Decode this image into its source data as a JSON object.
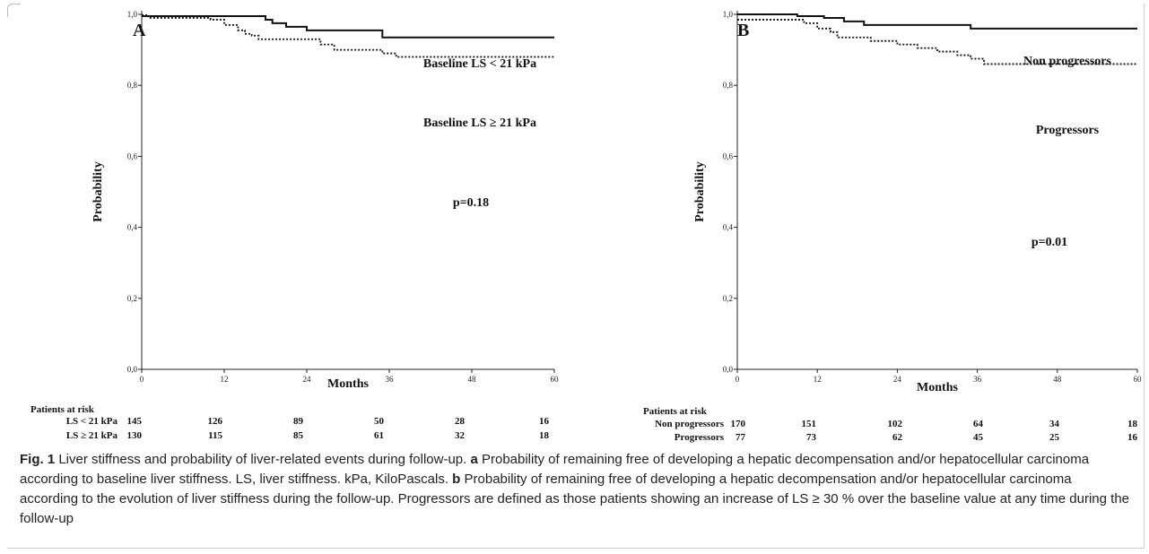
{
  "chart_data": [
    {
      "type": "line",
      "panel_label": "A",
      "ylabel": "Probability",
      "xlabel": "Months",
      "xlim": [
        0,
        60
      ],
      "ylim": [
        0,
        1
      ],
      "x_ticks": [
        0,
        12,
        24,
        36,
        48,
        60
      ],
      "x_tick_labels": [
        "0",
        "12",
        "24",
        "36",
        "48",
        "60"
      ],
      "y_ticks": [
        0,
        0.2,
        0.4,
        0.6,
        0.8,
        1.0
      ],
      "y_tick_labels": [
        "0,0",
        "0,2",
        "0,4",
        "0,6",
        "0,8",
        "1,0"
      ],
      "annotation": "p=0.18",
      "series": [
        {
          "name": "Baseline LS < 21 kPa",
          "style": "solid",
          "step_x": [
            0,
            17,
            18,
            19,
            21,
            22,
            24,
            27,
            35,
            60
          ],
          "step_y": [
            0.995,
            0.995,
            0.985,
            0.975,
            0.965,
            0.965,
            0.955,
            0.955,
            0.935,
            0.935
          ]
        },
        {
          "name": "Baseline LS ≥ 21 kPa",
          "style": "dotted",
          "step_x": [
            0,
            1,
            10,
            12,
            14,
            15,
            16,
            17,
            26,
            28,
            35,
            37,
            60
          ],
          "step_y": [
            0.998,
            0.99,
            0.985,
            0.97,
            0.955,
            0.945,
            0.94,
            0.93,
            0.915,
            0.9,
            0.89,
            0.88,
            0.88
          ]
        }
      ],
      "risk_table": {
        "header": "Patients at risk",
        "rows": [
          {
            "label": "LS < 21 kPa",
            "values": [
              "145",
              "126",
              "89",
              "50",
              "28",
              "16"
            ]
          },
          {
            "label": "LS ≥ 21 kPa",
            "values": [
              "130",
              "115",
              "85",
              "61",
              "32",
              "18"
            ]
          }
        ]
      }
    },
    {
      "type": "line",
      "panel_label": "B",
      "ylabel": "Probability",
      "xlabel": "Months",
      "xlim": [
        0,
        60
      ],
      "ylim": [
        0,
        1
      ],
      "x_ticks": [
        0,
        12,
        24,
        36,
        48,
        60
      ],
      "x_tick_labels": [
        "0",
        "12",
        "24",
        "36",
        "48",
        "60"
      ],
      "y_ticks": [
        0,
        0.2,
        0.4,
        0.6,
        0.8,
        1.0
      ],
      "y_tick_labels": [
        "0,0",
        "0,2",
        "0,4",
        "0,6",
        "0,8",
        "1,0"
      ],
      "annotation": "p=0.01",
      "series": [
        {
          "name": "Non progressors",
          "style": "solid",
          "step_x": [
            0,
            9,
            13,
            16,
            19,
            34,
            35,
            60
          ],
          "step_y": [
            1.0,
            0.995,
            0.99,
            0.98,
            0.97,
            0.97,
            0.96,
            0.96
          ],
          "label_text": "Non progressors"
        },
        {
          "name": "Progressors",
          "style": "dotted",
          "step_x": [
            0,
            10,
            12,
            14,
            15,
            20,
            24,
            27,
            30,
            33,
            35,
            37,
            60
          ],
          "step_y": [
            0.985,
            0.975,
            0.96,
            0.95,
            0.935,
            0.925,
            0.915,
            0.905,
            0.895,
            0.885,
            0.875,
            0.86,
            0.86
          ],
          "label_text": "Progressors"
        }
      ],
      "risk_table": {
        "header": "Patients at risk",
        "rows": [
          {
            "label": "Non progressors",
            "values": [
              "170",
              "151",
              "102",
              "64",
              "34",
              "18"
            ]
          },
          {
            "label": "Progressors",
            "values": [
              "77",
              "73",
              "62",
              "45",
              "25",
              "16"
            ]
          }
        ]
      }
    }
  ],
  "caption": {
    "fig_label": "Fig. 1",
    "segments": [
      {
        "bold": false,
        "text": " Liver stiffness and probability of liver-related events during follow-up. "
      },
      {
        "bold": true,
        "text": "a"
      },
      {
        "bold": false,
        "text": " Probability of remaining free of developing a hepatic decompensation and/or hepatocellular carcinoma according to baseline liver stiffness. LS, liver stiffness. kPa, KiloPascals. "
      },
      {
        "bold": true,
        "text": "b"
      },
      {
        "bold": false,
        "text": " Probability of remaining free of developing a hepatic decompensation and/or hepatocellular carcinoma according to the evolution of liver stiffness during the follow-up. Progressors are defined as those patients showing an increase of LS ≥ 30 % over the baseline value at any time during the follow-up"
      }
    ]
  }
}
